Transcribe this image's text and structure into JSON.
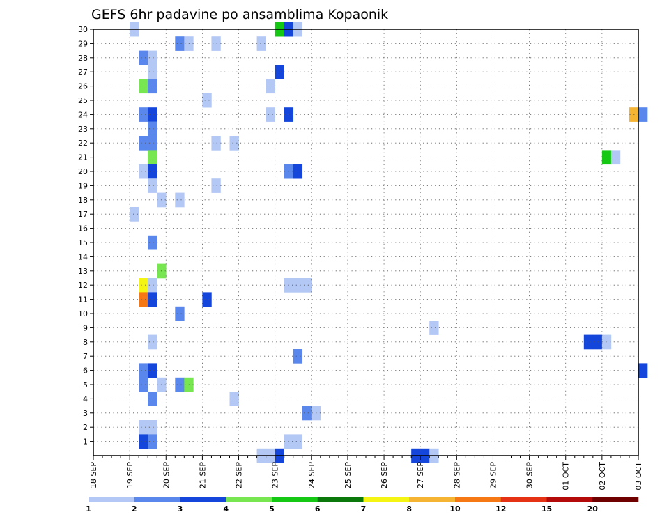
{
  "chart_data": {
    "type": "heatmap",
    "title": "GEFS 6hr padavine po ansamblima Kopaonik",
    "y_ticks": [
      1,
      2,
      3,
      4,
      5,
      6,
      7,
      8,
      9,
      10,
      11,
      12,
      13,
      14,
      15,
      16,
      17,
      18,
      19,
      20,
      21,
      22,
      23,
      24,
      25,
      26,
      27,
      28,
      29,
      30
    ],
    "ylim": [
      0,
      30
    ],
    "x_ticks": [
      "18 SEP",
      "19 SEP",
      "20 SEP",
      "21 SEP",
      "22 SEP",
      "23 SEP",
      "24 SEP",
      "25 SEP",
      "26 SEP",
      "27 SEP",
      "28 SEP",
      "29 SEP",
      "30 SEP",
      "01 OCT",
      "02 OCT",
      "03 OCT"
    ],
    "x_step_hours": 6,
    "grid": true,
    "colorbar": {
      "labels": [
        "1",
        "2",
        "3",
        "4",
        "5",
        "6",
        "7",
        "8",
        "10",
        "12",
        "15",
        "20"
      ],
      "colors": [
        "#b4c8f5",
        "#5a87eb",
        "#1446dc",
        "#78e650",
        "#14c814",
        "#0a780a",
        "#f5f514",
        "#f5b432",
        "#f57814",
        "#e63214",
        "#b40a0a",
        "#6e0000"
      ]
    },
    "cells": [
      {
        "ens": 30,
        "t": [
          [
            4,
            0
          ],
          [
            20,
            4
          ],
          [
            21,
            2
          ],
          [
            22,
            0
          ]
        ]
      },
      {
        "ens": 29,
        "t": [
          [
            9,
            1
          ],
          [
            10,
            0
          ],
          [
            13,
            0
          ],
          [
            18,
            0
          ]
        ]
      },
      {
        "ens": 28,
        "t": [
          [
            5,
            1
          ],
          [
            6,
            0
          ]
        ]
      },
      {
        "ens": 27,
        "t": [
          [
            6,
            0
          ],
          [
            20,
            2
          ]
        ]
      },
      {
        "ens": 26,
        "t": [
          [
            5,
            3
          ],
          [
            6,
            1
          ],
          [
            19,
            0
          ]
        ]
      },
      {
        "ens": 25,
        "t": [
          [
            12,
            0
          ]
        ]
      },
      {
        "ens": 24,
        "t": [
          [
            5,
            1
          ],
          [
            6,
            2
          ],
          [
            19,
            0
          ],
          [
            21,
            2
          ],
          [
            59,
            7
          ],
          [
            60,
            1
          ]
        ]
      },
      {
        "ens": 23,
        "t": [
          [
            6,
            1
          ]
        ]
      },
      {
        "ens": 22,
        "t": [
          [
            5,
            1
          ],
          [
            6,
            1
          ],
          [
            13,
            0
          ],
          [
            15,
            0
          ]
        ]
      },
      {
        "ens": 21,
        "t": [
          [
            6,
            3
          ],
          [
            56,
            4
          ],
          [
            57,
            0
          ]
        ]
      },
      {
        "ens": 20,
        "t": [
          [
            5,
            0
          ],
          [
            6,
            2
          ],
          [
            21,
            1
          ],
          [
            22,
            2
          ]
        ]
      },
      {
        "ens": 19,
        "t": [
          [
            6,
            0
          ],
          [
            13,
            0
          ]
        ]
      },
      {
        "ens": 18,
        "t": [
          [
            7,
            0
          ],
          [
            9,
            0
          ]
        ]
      },
      {
        "ens": 17,
        "t": [
          [
            4,
            0
          ]
        ]
      },
      {
        "ens": 15,
        "t": [
          [
            6,
            1
          ]
        ]
      },
      {
        "ens": 13,
        "t": [
          [
            7,
            3
          ]
        ]
      },
      {
        "ens": 12,
        "t": [
          [
            5,
            6
          ],
          [
            6,
            0
          ],
          [
            21,
            0
          ],
          [
            22,
            0
          ],
          [
            23,
            0
          ]
        ]
      },
      {
        "ens": 11,
        "t": [
          [
            5,
            8
          ],
          [
            6,
            2
          ],
          [
            12,
            2
          ]
        ]
      },
      {
        "ens": 10,
        "t": [
          [
            9,
            1
          ]
        ]
      },
      {
        "ens": 9,
        "t": [
          [
            37,
            0
          ]
        ]
      },
      {
        "ens": 8,
        "t": [
          [
            6,
            0
          ],
          [
            54,
            2
          ],
          [
            55,
            2
          ],
          [
            56,
            0
          ]
        ]
      },
      {
        "ens": 7,
        "t": [
          [
            22,
            1
          ]
        ]
      },
      {
        "ens": 6,
        "t": [
          [
            5,
            1
          ],
          [
            6,
            2
          ],
          [
            60,
            2
          ]
        ]
      },
      {
        "ens": 5,
        "t": [
          [
            5,
            1
          ],
          [
            7,
            0
          ],
          [
            9,
            1
          ],
          [
            10,
            3
          ]
        ]
      },
      {
        "ens": 4,
        "t": [
          [
            6,
            1
          ],
          [
            15,
            0
          ]
        ]
      },
      {
        "ens": 3,
        "t": [
          [
            23,
            1
          ],
          [
            24,
            0
          ]
        ]
      },
      {
        "ens": 2,
        "t": [
          [
            5,
            0
          ],
          [
            6,
            0
          ]
        ]
      },
      {
        "ens": 1,
        "t": [
          [
            5,
            2
          ],
          [
            6,
            1
          ],
          [
            21,
            0
          ],
          [
            22,
            0
          ]
        ]
      },
      {
        "ens": 0,
        "t": [
          [
            18,
            0
          ],
          [
            19,
            0
          ],
          [
            20,
            2
          ],
          [
            35,
            2
          ],
          [
            36,
            2
          ],
          [
            37,
            0
          ]
        ]
      }
    ]
  }
}
